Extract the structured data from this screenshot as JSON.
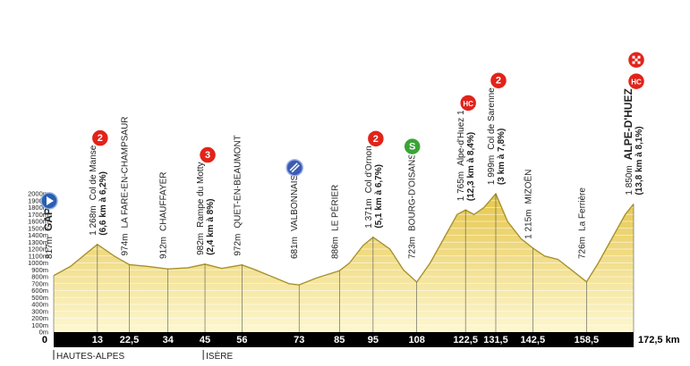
{
  "chart_data": {
    "type": "area",
    "x": [
      0,
      5,
      10,
      13,
      18,
      22.5,
      28,
      34,
      40,
      45,
      50,
      56,
      60,
      65,
      70,
      73,
      78,
      85,
      88,
      92,
      95,
      100,
      104,
      108,
      112,
      116,
      120,
      122.5,
      125,
      128,
      131.5,
      135,
      139,
      142.5,
      146,
      150,
      154,
      158.5,
      162,
      166,
      170,
      172.5
    ],
    "values": [
      817,
      950,
      1150,
      1268,
      1100,
      974,
      950,
      912,
      930,
      982,
      920,
      972,
      900,
      800,
      700,
      681,
      780,
      886,
      1000,
      1250,
      1371,
      1200,
      900,
      723,
      1000,
      1350,
      1700,
      1765,
      1700,
      1800,
      1999,
      1600,
      1350,
      1215,
      1100,
      1050,
      900,
      726,
      1000,
      1350,
      1700,
      1850
    ],
    "fill_top": "#e6c64a",
    "fill_bottom": "#fdf7d0",
    "line_color": "#a8922c",
    "xlim": [
      0,
      172.5
    ],
    "xticks": [
      0,
      13,
      {
        "value": 22.5,
        "label": "22,5"
      },
      34,
      45,
      56,
      73,
      85,
      95,
      108,
      {
        "value": 122.5,
        "label": "122,5"
      },
      {
        "value": 131.5,
        "label": "131,5"
      },
      {
        "value": 142.5,
        "label": "142,5"
      },
      {
        "value": 158.5,
        "label": "158,5"
      },
      {
        "value": 172.5,
        "label": "172,5 km"
      }
    ],
    "ylim": [
      0,
      2000
    ],
    "yticks": [
      {
        "value": 0,
        "label": "0m"
      },
      {
        "value": 100,
        "label": "100m"
      },
      {
        "value": 200,
        "label": "200m"
      },
      {
        "value": 300,
        "label": "300m"
      },
      {
        "value": 400,
        "label": "400m"
      },
      {
        "value": 500,
        "label": "500m"
      },
      {
        "value": 600,
        "label": "600m"
      },
      {
        "value": 700,
        "label": "700m"
      },
      {
        "value": 800,
        "label": "800m"
      },
      {
        "value": 900,
        "label": "900m"
      },
      {
        "value": 1000,
        "label": "1000m"
      },
      {
        "value": 1100,
        "label": "1100m"
      },
      {
        "value": 1200,
        "label": "1200m"
      },
      {
        "value": 1300,
        "label": "1300m"
      },
      {
        "value": 1400,
        "label": "1400m"
      },
      {
        "value": 1500,
        "label": "1500m"
      },
      {
        "value": 1600,
        "label": "1600m"
      },
      {
        "value": 1700,
        "label": "1700m"
      },
      {
        "value": 1800,
        "label": "1800m"
      },
      {
        "value": 1900,
        "label": "1900m"
      },
      {
        "value": 2000,
        "label": "2000m"
      }
    ],
    "annotations": [
      {
        "x": 0,
        "altitude": "817m",
        "name": "GAP",
        "bold": true,
        "icon": "start"
      },
      {
        "x": 13,
        "altitude": "1 268m",
        "name": "Col de Manse",
        "detail": "(6,6 km à 6,2%)",
        "badge": "2",
        "badge_color": "#e2231a"
      },
      {
        "x": 22.5,
        "altitude": "974m",
        "name": "LA FARE-EN-CHAMPSAUR"
      },
      {
        "x": 34,
        "altitude": "912m",
        "name": "CHAUFFAYER"
      },
      {
        "x": 45,
        "altitude": "982m",
        "name": "Rampe du Motty",
        "detail": "(2,4 km à 8%)",
        "badge": "3",
        "badge_color": "#e2231a"
      },
      {
        "x": 56,
        "altitude": "972m",
        "name": "QUET-EN-BEAUMONT"
      },
      {
        "x": 73,
        "altitude": "681m",
        "name": "VALBONNAIS",
        "icon": "feed"
      },
      {
        "x": 85,
        "altitude": "886m",
        "name": "LE PÉRIER"
      },
      {
        "x": 95,
        "altitude": "1 371m",
        "name": "Col d'Ornon",
        "detail": "(5,1 km à 6,7%)",
        "badge": "2",
        "badge_color": "#e2231a"
      },
      {
        "x": 108,
        "altitude": "723m",
        "name": "BOURG-D'OISANS",
        "badge": "S",
        "badge_color": "#3aa435"
      },
      {
        "x": 122.5,
        "altitude": "1 765m",
        "name": "Alpe-d'Huez 1",
        "detail": "(12,3 km à 8,4%)",
        "badge": "HC",
        "badge_color": "#e2231a"
      },
      {
        "x": 131.5,
        "altitude": "1 999m",
        "name": "Col de Sarenne",
        "detail": "(3 km à 7,8%)",
        "badge": "2",
        "badge_color": "#e2231a"
      },
      {
        "x": 142.5,
        "altitude": "1 215m",
        "name": "MIZOËN"
      },
      {
        "x": 158.5,
        "altitude": "726m",
        "name": "La Ferrière"
      },
      {
        "x": 172.5,
        "altitude": "1 850m",
        "name": "ALPE-D'HUEZ",
        "detail": "(13,8 km à 8,1%)",
        "bold": true,
        "badge": "HC",
        "badge_color": "#e2231a",
        "icon": "finish"
      }
    ],
    "regions": [
      {
        "x": 0,
        "label": "HAUTES-ALPES"
      },
      {
        "x": 44.5,
        "label": "ISÈRE"
      }
    ]
  }
}
